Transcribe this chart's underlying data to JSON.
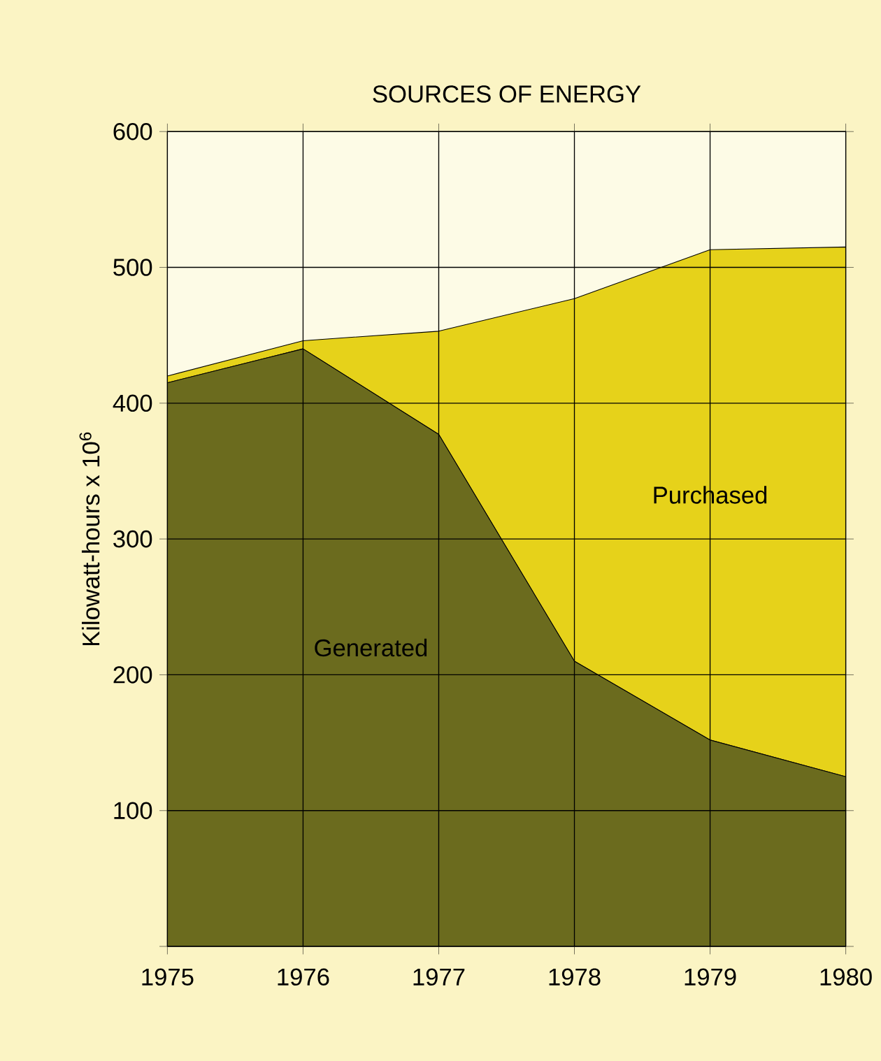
{
  "chart_data": {
    "type": "area",
    "title": "SOURCES OF ENERGY",
    "ylabel": "Kilowatt-hours x 10$^{6}$",
    "stacked": true,
    "x": [
      1975,
      1976,
      1977,
      1978,
      1979,
      1980
    ],
    "series": [
      {
        "name": "Generated",
        "color": "#6b6b1e",
        "values": [
          415,
          440,
          377,
          210,
          152,
          125
        ]
      },
      {
        "name": "Purchased",
        "color": "#e6d21a",
        "values": [
          5,
          6,
          76,
          267,
          361,
          390
        ]
      }
    ],
    "xlim": [
      1975,
      1980
    ],
    "xticks": [
      1975,
      1976,
      1977,
      1978,
      1979,
      1980
    ],
    "ylim": [
      0,
      600
    ],
    "yticks": [
      {
        "value": 0,
        "label": null
      },
      100,
      200,
      300,
      400,
      500,
      600
    ],
    "grid": true
  }
}
